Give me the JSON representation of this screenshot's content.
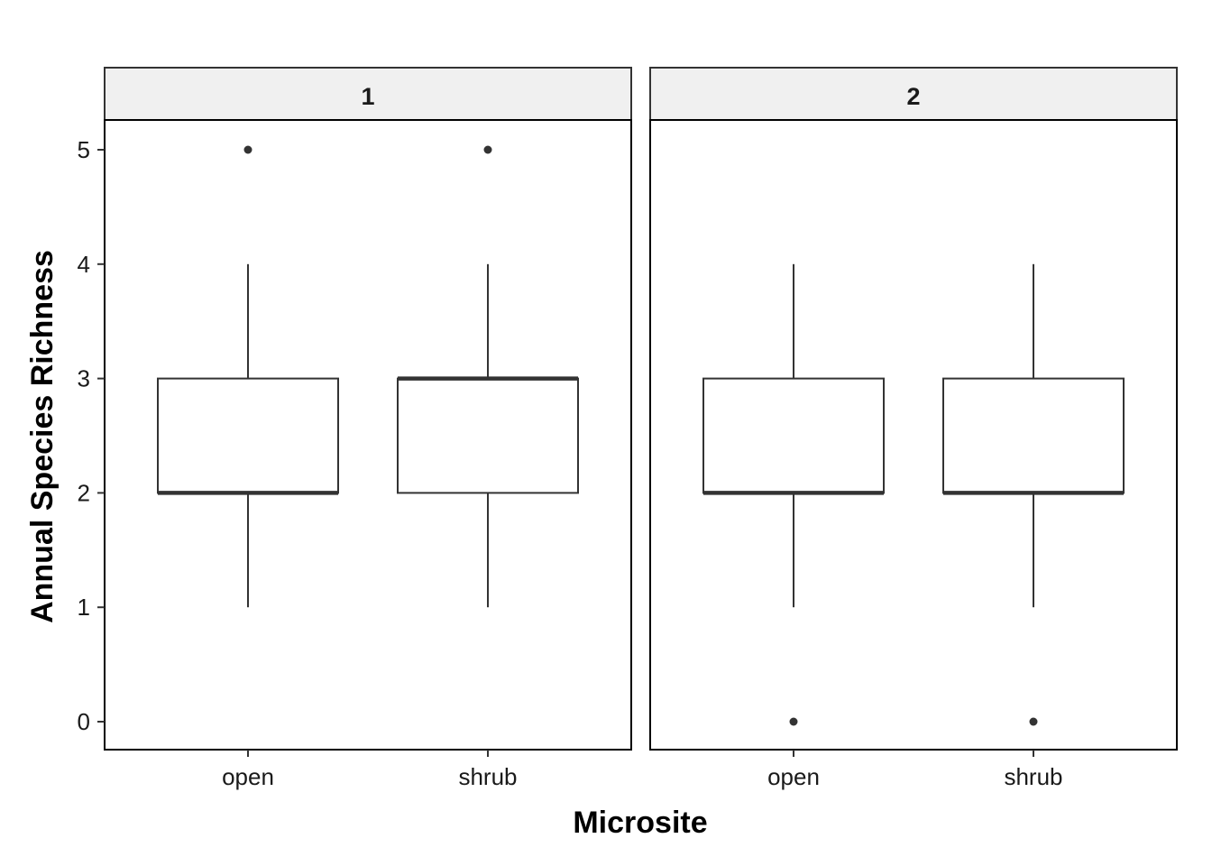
{
  "chart_data": {
    "type": "boxplot",
    "xlabel": "Microsite",
    "ylabel": "Annual Species Richness",
    "ylim": [
      0,
      5
    ],
    "y_ticks": [
      0,
      1,
      2,
      3,
      4,
      5
    ],
    "categories": [
      "open",
      "shrub"
    ],
    "panels": [
      {
        "label": "1",
        "boxes": [
          {
            "category": "open",
            "lower_whisker": 1,
            "q1": 2,
            "median": 2,
            "q3": 3,
            "upper_whisker": 4,
            "outliers": [
              5
            ]
          },
          {
            "category": "shrub",
            "lower_whisker": 1,
            "q1": 2,
            "median": 3,
            "q3": 3,
            "upper_whisker": 4,
            "outliers": [
              5
            ]
          }
        ]
      },
      {
        "label": "2",
        "boxes": [
          {
            "category": "open",
            "lower_whisker": 1,
            "q1": 2,
            "median": 2,
            "q3": 3,
            "upper_whisker": 4,
            "outliers": [
              0
            ]
          },
          {
            "category": "shrub",
            "lower_whisker": 1,
            "q1": 2,
            "median": 2,
            "q3": 3,
            "upper_whisker": 4,
            "outliers": [
              0
            ]
          }
        ]
      }
    ],
    "colors": {
      "box_fill": "#ffffff",
      "line": "#333333",
      "strip_fill": "#f0f0f0",
      "panel_border": "#000000"
    },
    "grid": false,
    "legend": "none"
  }
}
